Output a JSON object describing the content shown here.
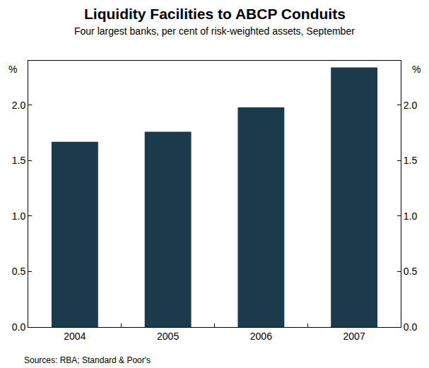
{
  "chart_data": {
    "type": "bar",
    "title": "Liquidity Facilities to ABCP Conduits",
    "subtitle": "Four largest banks, per cent of risk-weighted assets, September",
    "y_label": "%",
    "source": "Sources: RBA; Standard & Poor's",
    "categories": [
      "2004",
      "2005",
      "2006",
      "2007"
    ],
    "values": [
      1.67,
      1.76,
      1.98,
      2.34
    ],
    "color": "#1b3a4b",
    "ylim": [
      0,
      2.4
    ],
    "yticks": [
      {
        "value": 0,
        "label": "0.0"
      },
      0.5,
      {
        "value": 1,
        "label": "1.0"
      },
      1.5,
      {
        "value": 2,
        "label": "2.0"
      }
    ],
    "grid": false
  }
}
